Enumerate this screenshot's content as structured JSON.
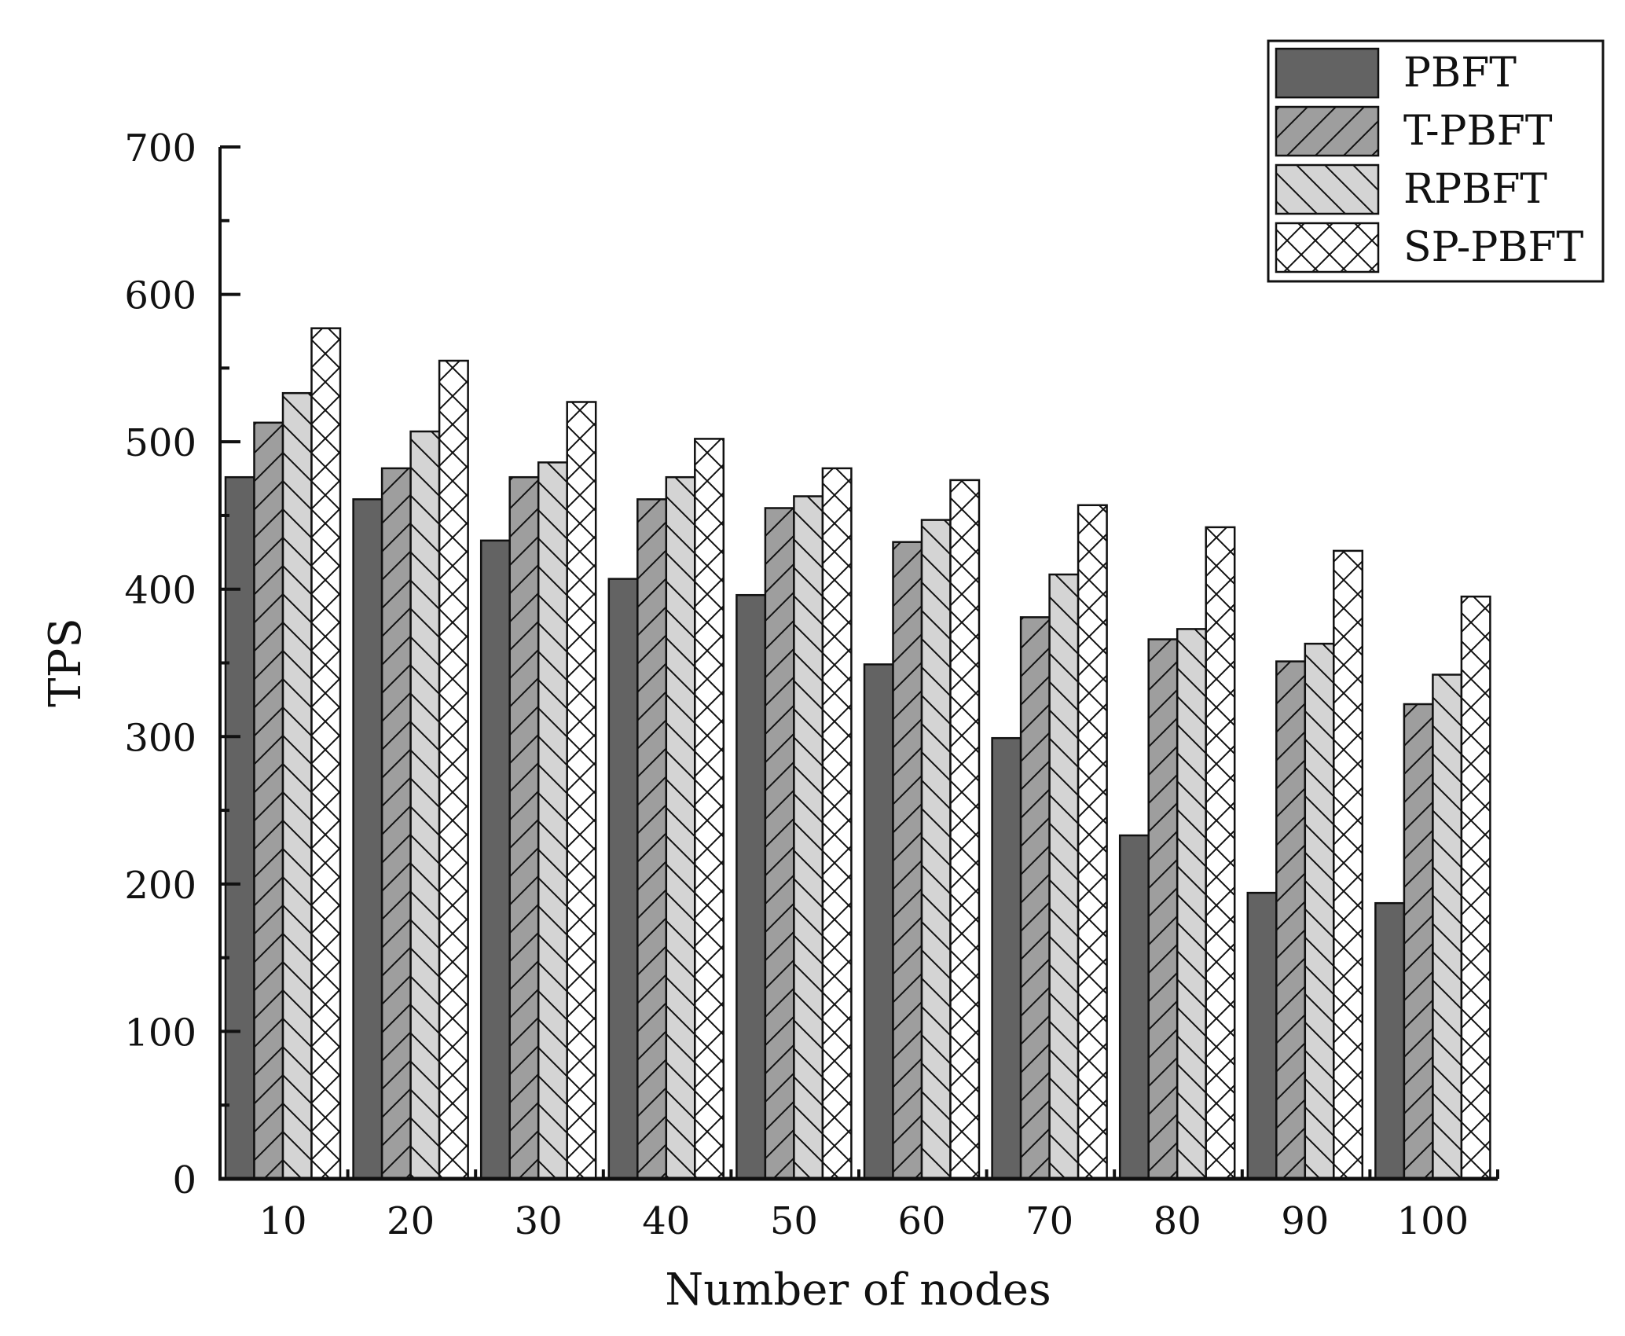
{
  "chart_data": {
    "type": "bar",
    "title": "",
    "xlabel": "Number of nodes",
    "ylabel": "TPS",
    "categories": [
      "10",
      "20",
      "30",
      "40",
      "50",
      "60",
      "70",
      "80",
      "90",
      "100"
    ],
    "ylim": [
      0,
      700
    ],
    "yticks": [
      0,
      100,
      200,
      300,
      400,
      500,
      600,
      700
    ],
    "grid": false,
    "legend_position": "top-right",
    "series": [
      {
        "name": "PBFT",
        "values": [
          476,
          461,
          433,
          407,
          396,
          349,
          299,
          233,
          194,
          187
        ],
        "pattern": "solid",
        "color": "#636363"
      },
      {
        "name": "T-PBFT",
        "values": [
          513,
          482,
          476,
          461,
          455,
          432,
          381,
          366,
          351,
          322
        ],
        "pattern": "forward-diagonal",
        "color": "#9e9e9e"
      },
      {
        "name": "RPBFT",
        "values": [
          533,
          507,
          486,
          476,
          463,
          447,
          410,
          373,
          363,
          342
        ],
        "pattern": "backward-diagonal",
        "color": "#d4d4d4"
      },
      {
        "name": "SP-PBFT",
        "values": [
          577,
          555,
          527,
          502,
          482,
          474,
          457,
          442,
          426,
          395
        ],
        "pattern": "cross-hatch",
        "color": "#ffffff"
      }
    ]
  }
}
